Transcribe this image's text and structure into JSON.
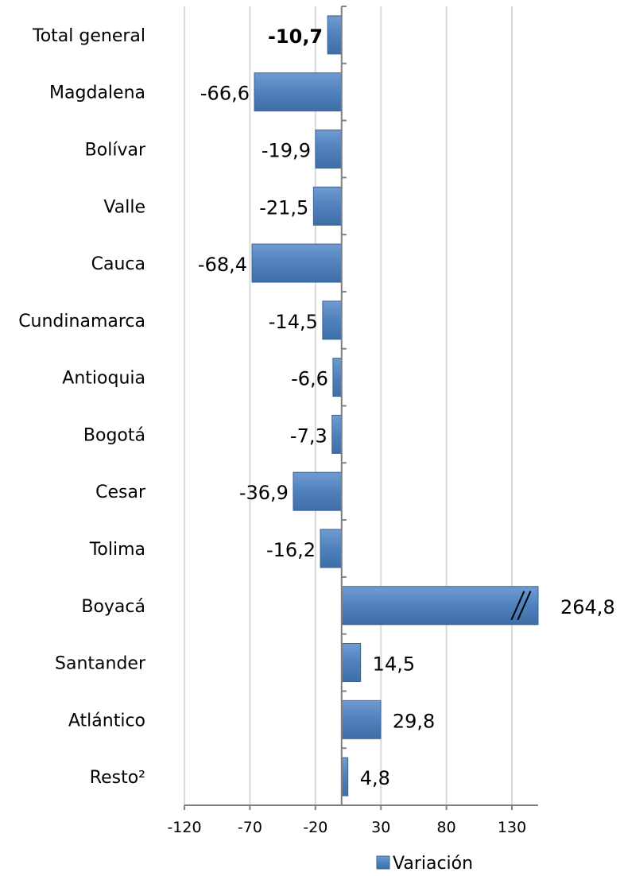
{
  "chart_data": {
    "type": "bar",
    "orientation": "horizontal",
    "categories": [
      "Total general",
      "Magdalena",
      "Bolívar",
      "Valle",
      "Cauca",
      "Cundinamarca",
      "Antioquia",
      "Bogotá",
      "Cesar",
      "Tolima",
      "Boyacá",
      "Santander",
      "Atlántico",
      "Resto²"
    ],
    "series": [
      {
        "name": "Variación",
        "values": [
          -10.7,
          -66.6,
          -19.9,
          -21.5,
          -68.4,
          -14.5,
          -6.6,
          -7.3,
          -36.9,
          -16.2,
          264.8,
          14.5,
          29.8,
          4.8
        ],
        "labels": [
          "-10,7",
          "-66,6",
          "-19,9",
          "-21,5",
          "-68,4",
          "-14,5",
          "-6,6",
          "-7,3",
          "-36,9",
          "-16,2",
          "264,8",
          "14,5",
          "29,8",
          "4,8"
        ]
      }
    ],
    "bold_categories": [
      "Total general"
    ],
    "x_ticks": [
      -120,
      -70,
      -20,
      30,
      80,
      130
    ],
    "x_tick_labels": [
      "-120",
      "-70",
      "-20",
      "30",
      "80",
      "130"
    ],
    "xlim": [
      -120,
      150
    ],
    "axis_break": true,
    "grid": "vertical",
    "legend": {
      "position": "bottom",
      "label": "Variación"
    },
    "colors": {
      "bar": "#4f81bd",
      "bar_edge": "#3a6496",
      "grid": "#d9d9d9",
      "axis": "#808080"
    }
  }
}
